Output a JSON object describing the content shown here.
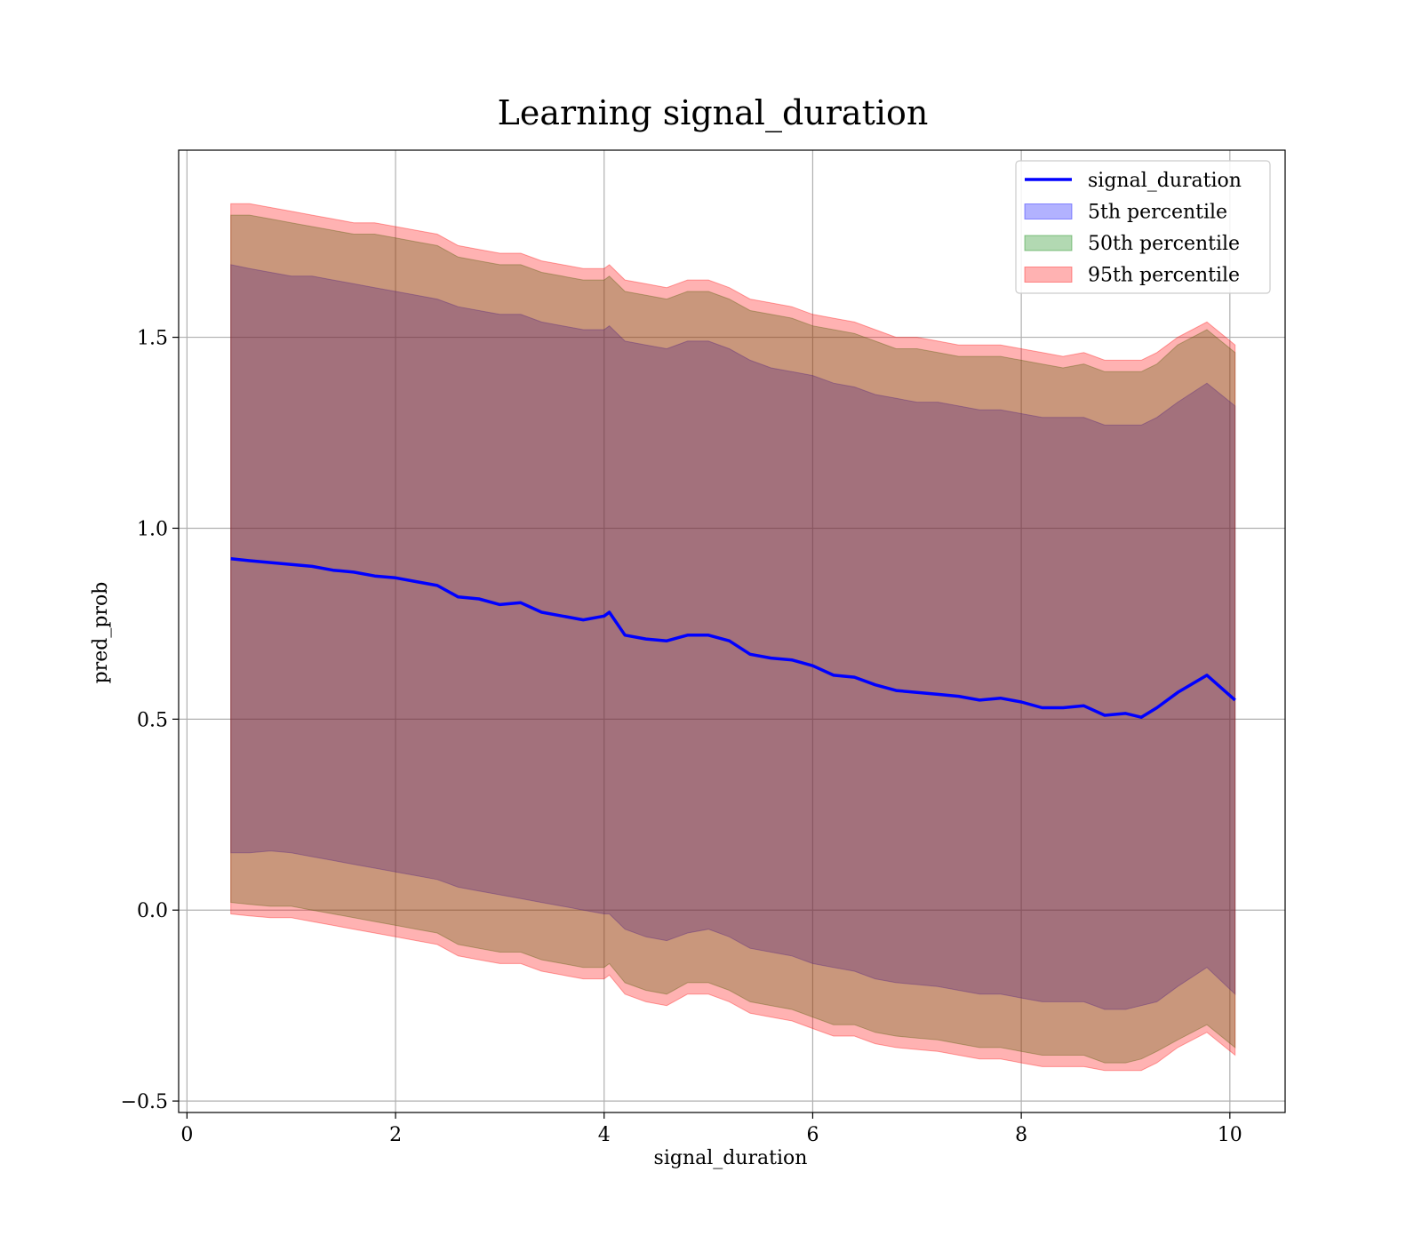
{
  "chart_data": {
    "type": "line",
    "title": "Learning signal_duration",
    "xlabel": "signal_duration",
    "ylabel": "pred_prob",
    "xlim": [
      -0.08,
      10.53
    ],
    "ylim": [
      -0.53,
      1.99
    ],
    "xticks": [
      0,
      2,
      4,
      6,
      8,
      10
    ],
    "yticks": [
      -0.5,
      0.0,
      0.5,
      1.0,
      1.5
    ],
    "xtick_labels": [
      "0",
      "2",
      "4",
      "6",
      "8",
      "10"
    ],
    "ytick_labels": [
      "−0.5",
      "0.0",
      "0.5",
      "1.0",
      "1.5"
    ],
    "grid": true,
    "legend_position": "top-right",
    "colors": {
      "line": "#0000ff",
      "band_5th": "#0000ff",
      "band_50th": "#008000",
      "band_95th": "#ff0000",
      "band_alpha": 0.3
    },
    "x": [
      0.42,
      0.6,
      0.8,
      1.0,
      1.2,
      1.4,
      1.6,
      1.8,
      2.0,
      2.2,
      2.4,
      2.6,
      2.8,
      3.0,
      3.2,
      3.4,
      3.6,
      3.8,
      4.0,
      4.05,
      4.2,
      4.4,
      4.6,
      4.8,
      5.0,
      5.2,
      5.4,
      5.6,
      5.8,
      6.0,
      6.2,
      6.4,
      6.6,
      6.8,
      7.0,
      7.2,
      7.4,
      7.6,
      7.8,
      8.0,
      8.2,
      8.4,
      8.6,
      8.8,
      9.0,
      9.15,
      9.3,
      9.5,
      9.78,
      10.05
    ],
    "series": [
      {
        "name": "signal_duration",
        "values": [
          0.92,
          0.915,
          0.91,
          0.905,
          0.9,
          0.89,
          0.885,
          0.875,
          0.87,
          0.86,
          0.85,
          0.82,
          0.815,
          0.8,
          0.805,
          0.78,
          0.77,
          0.76,
          0.77,
          0.78,
          0.72,
          0.71,
          0.705,
          0.72,
          0.72,
          0.705,
          0.67,
          0.66,
          0.655,
          0.64,
          0.615,
          0.61,
          0.59,
          0.575,
          0.57,
          0.565,
          0.56,
          0.55,
          0.555,
          0.545,
          0.53,
          0.53,
          0.535,
          0.51,
          0.515,
          0.505,
          0.53,
          0.57,
          0.615,
          0.55
        ]
      },
      {
        "name": "5th percentile",
        "lower": [
          0.15,
          0.15,
          0.155,
          0.15,
          0.14,
          0.13,
          0.12,
          0.11,
          0.1,
          0.09,
          0.08,
          0.06,
          0.05,
          0.04,
          0.03,
          0.02,
          0.01,
          0.0,
          -0.01,
          -0.01,
          -0.05,
          -0.07,
          -0.08,
          -0.06,
          -0.05,
          -0.07,
          -0.1,
          -0.11,
          -0.12,
          -0.14,
          -0.15,
          -0.16,
          -0.18,
          -0.19,
          -0.195,
          -0.2,
          -0.21,
          -0.22,
          -0.22,
          -0.23,
          -0.24,
          -0.24,
          -0.24,
          -0.26,
          -0.26,
          -0.25,
          -0.24,
          -0.2,
          -0.15,
          -0.22
        ],
        "upper": [
          1.69,
          1.68,
          1.67,
          1.66,
          1.66,
          1.65,
          1.64,
          1.63,
          1.62,
          1.61,
          1.6,
          1.58,
          1.57,
          1.56,
          1.56,
          1.54,
          1.53,
          1.52,
          1.52,
          1.53,
          1.49,
          1.48,
          1.47,
          1.49,
          1.49,
          1.47,
          1.44,
          1.42,
          1.41,
          1.4,
          1.38,
          1.37,
          1.35,
          1.34,
          1.33,
          1.33,
          1.32,
          1.31,
          1.31,
          1.3,
          1.29,
          1.29,
          1.29,
          1.27,
          1.27,
          1.27,
          1.29,
          1.33,
          1.38,
          1.32
        ]
      },
      {
        "name": "50th percentile",
        "lower": [
          0.02,
          0.015,
          0.01,
          0.01,
          0.0,
          -0.01,
          -0.02,
          -0.03,
          -0.04,
          -0.05,
          -0.06,
          -0.09,
          -0.1,
          -0.11,
          -0.11,
          -0.13,
          -0.14,
          -0.15,
          -0.15,
          -0.14,
          -0.19,
          -0.21,
          -0.22,
          -0.19,
          -0.19,
          -0.21,
          -0.24,
          -0.25,
          -0.26,
          -0.28,
          -0.3,
          -0.3,
          -0.32,
          -0.33,
          -0.335,
          -0.34,
          -0.35,
          -0.36,
          -0.36,
          -0.37,
          -0.38,
          -0.38,
          -0.38,
          -0.4,
          -0.4,
          -0.39,
          -0.37,
          -0.34,
          -0.3,
          -0.36
        ],
        "upper": [
          1.82,
          1.82,
          1.81,
          1.8,
          1.79,
          1.78,
          1.77,
          1.77,
          1.76,
          1.75,
          1.74,
          1.71,
          1.7,
          1.69,
          1.69,
          1.67,
          1.66,
          1.65,
          1.65,
          1.66,
          1.62,
          1.61,
          1.6,
          1.62,
          1.62,
          1.6,
          1.57,
          1.56,
          1.55,
          1.53,
          1.52,
          1.51,
          1.49,
          1.47,
          1.47,
          1.46,
          1.45,
          1.45,
          1.45,
          1.44,
          1.43,
          1.42,
          1.43,
          1.41,
          1.41,
          1.41,
          1.43,
          1.48,
          1.52,
          1.46
        ]
      },
      {
        "name": "95th percentile",
        "lower": [
          -0.01,
          -0.015,
          -0.02,
          -0.02,
          -0.03,
          -0.04,
          -0.05,
          -0.06,
          -0.07,
          -0.08,
          -0.09,
          -0.12,
          -0.13,
          -0.14,
          -0.14,
          -0.16,
          -0.17,
          -0.18,
          -0.18,
          -0.17,
          -0.22,
          -0.24,
          -0.25,
          -0.22,
          -0.22,
          -0.24,
          -0.27,
          -0.28,
          -0.29,
          -0.31,
          -0.33,
          -0.33,
          -0.35,
          -0.36,
          -0.365,
          -0.37,
          -0.38,
          -0.39,
          -0.39,
          -0.4,
          -0.41,
          -0.41,
          -0.41,
          -0.42,
          -0.42,
          -0.42,
          -0.4,
          -0.36,
          -0.32,
          -0.38
        ],
        "upper": [
          1.85,
          1.85,
          1.84,
          1.83,
          1.82,
          1.81,
          1.8,
          1.8,
          1.79,
          1.78,
          1.77,
          1.74,
          1.73,
          1.72,
          1.72,
          1.7,
          1.69,
          1.68,
          1.68,
          1.69,
          1.65,
          1.64,
          1.63,
          1.65,
          1.65,
          1.63,
          1.6,
          1.59,
          1.58,
          1.56,
          1.55,
          1.54,
          1.52,
          1.5,
          1.5,
          1.49,
          1.48,
          1.48,
          1.48,
          1.47,
          1.46,
          1.45,
          1.46,
          1.44,
          1.44,
          1.44,
          1.46,
          1.5,
          1.54,
          1.48
        ]
      }
    ]
  }
}
